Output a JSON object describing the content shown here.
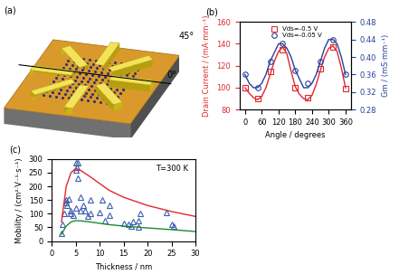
{
  "chart_data": [
    {
      "type": "diagram",
      "title": "(a)",
      "annotations": [
        "45°",
        "0°"
      ]
    },
    {
      "type": "line",
      "title": "(b)",
      "x_label": "Angle / degrees",
      "y_label": "Drain Current / (mA·mm⁻¹)",
      "y2_label": "Gm / (mS·mm⁻¹)",
      "xlim": [
        -20,
        380
      ],
      "xticks": [
        0,
        60,
        120,
        180,
        240,
        300,
        360
      ],
      "ylim": [
        80,
        160
      ],
      "yticks": [
        80,
        100,
        120,
        140,
        160
      ],
      "y2lim": [
        0.28,
        0.48
      ],
      "y2ticks": [
        {
          "value": 0.28,
          "label": "0.28"
        },
        {
          "value": 0.32,
          "label": "0.32"
        },
        {
          "value": 0.36,
          "label": "0.36"
        },
        {
          "value": 0.4,
          "label": "0.40"
        },
        {
          "value": 0.44,
          "label": "0.44"
        },
        {
          "value": 0.48,
          "label": "0.48"
        }
      ],
      "legend": "upper center",
      "series": [
        {
          "name": "Vds=-0.5 V",
          "color": "#e0282e",
          "marker": "s",
          "line_style": "none",
          "x": [
            0,
            45,
            90,
            135,
            180,
            225,
            270,
            315,
            360
          ],
          "values": [
            100,
            90,
            115,
            135,
            100,
            91,
            117,
            137,
            99
          ]
        },
        {
          "name": "Vds=-0.05 V",
          "color": "#2a3f9c",
          "marker": "o",
          "line_style": "none",
          "axis": "y2",
          "x": [
            0,
            45,
            90,
            135,
            180,
            225,
            270,
            315,
            360
          ],
          "values": [
            0.36,
            0.33,
            0.39,
            0.43,
            0.37,
            0.34,
            0.39,
            0.44,
            0.36
          ]
        },
        {
          "color": "#e0282e",
          "line_style": "solid",
          "x": [
            0,
            15,
            30,
            45,
            60,
            75,
            90,
            105,
            120,
            135,
            150,
            165,
            180,
            195,
            210,
            225,
            240,
            255,
            270,
            285,
            300,
            315,
            330,
            345,
            360
          ],
          "values": [
            100,
            95,
            91,
            89,
            92,
            100,
            112,
            124,
            133,
            137,
            131,
            115,
            101,
            94,
            90,
            89,
            93,
            103,
            116,
            128,
            136,
            138,
            133,
            118,
            100
          ]
        },
        {
          "color": "#2a3f9c",
          "line_style": "solid",
          "axis": "y2",
          "x": [
            0,
            15,
            30,
            45,
            60,
            75,
            90,
            105,
            120,
            135,
            150,
            165,
            180,
            195,
            210,
            225,
            240,
            255,
            270,
            285,
            300,
            315,
            330,
            345,
            360
          ],
          "values": [
            0.36,
            0.34,
            0.33,
            0.33,
            0.34,
            0.36,
            0.39,
            0.41,
            0.43,
            0.43,
            0.42,
            0.4,
            0.37,
            0.35,
            0.33,
            0.33,
            0.34,
            0.36,
            0.39,
            0.42,
            0.44,
            0.44,
            0.43,
            0.4,
            0.36
          ]
        }
      ]
    },
    {
      "type": "scatter",
      "title": "(c)",
      "x_label": "Thickness / nm",
      "y_label": "Mobility / (cm²·V⁻¹·s⁻¹)",
      "annotations": [
        "T=300 K"
      ],
      "xlim": [
        0,
        30
      ],
      "xticks": [
        0,
        5,
        10,
        15,
        20,
        25,
        30
      ],
      "ylim": [
        0,
        300
      ],
      "yticks": [
        0,
        50,
        100,
        150,
        200,
        250,
        300
      ],
      "series": [
        {
          "color": "#3a5fb0",
          "marker": "^",
          "line_style": "none",
          "x": [
            2,
            2.2,
            2.5,
            3,
            3,
            3.2,
            3.5,
            4,
            4,
            4.5,
            5,
            5,
            5,
            5.5,
            5.2,
            5.5,
            6,
            6,
            6.5,
            7,
            7.5,
            8,
            8,
            10,
            10.5,
            11,
            12,
            12,
            15,
            16,
            16.5,
            17,
            18,
            18.5,
            18,
            24,
            25,
            25.5
          ],
          "values": [
            30,
            60,
            100,
            140,
            150,
            130,
            155,
            100,
            110,
            95,
            120,
            260,
            285,
            285,
            270,
            230,
            110,
            160,
            130,
            110,
            90,
            150,
            100,
            105,
            150,
            75,
            95,
            130,
            65,
            60,
            55,
            70,
            75,
            100,
            50,
            105,
            60,
            55
          ]
        },
        {
          "color": "#e0282e",
          "line_style": "solid",
          "x": [
            2,
            3,
            4,
            5,
            6,
            8,
            10,
            12,
            15,
            20,
            25,
            30
          ],
          "values": [
            70,
            200,
            250,
            265,
            258,
            235,
            210,
            185,
            160,
            130,
            108,
            90
          ]
        },
        {
          "color": "#1e8a2e",
          "line_style": "solid",
          "x": [
            2,
            3,
            4,
            5,
            6,
            8,
            10,
            12,
            15,
            20,
            25,
            30
          ],
          "values": [
            25,
            55,
            70,
            75,
            74,
            70,
            65,
            60,
            55,
            48,
            42,
            35
          ]
        }
      ]
    }
  ]
}
